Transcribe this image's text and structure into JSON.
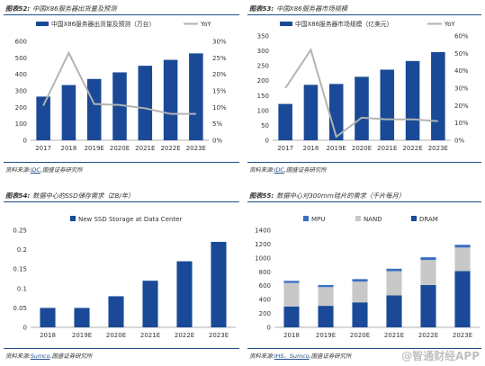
{
  "colors": {
    "bar": "#1a4a97",
    "line": "#b3b3b3",
    "mpu": "#3a6fc4",
    "nand": "#c8c8c8",
    "dram": "#1a4a97",
    "rule": "#1f4e8c"
  },
  "charts": [
    {
      "title_num": "图表52:",
      "title_text": "中国X86服务器出货量及预测",
      "source_prefix": "资料来源:",
      "source_cite": "IDC",
      "source_suffix": ",国盛证券研究所",
      "legend_bar": "中国X86服务器出货量及预测（万台）",
      "legend_line": "YoY"
    },
    {
      "title_num": "图表53:",
      "title_text": "中国X86服务器市场规模",
      "source_prefix": "资料来源:",
      "source_cite": "IDC",
      "source_suffix": ",国盛证券研究所",
      "legend_bar": "中国X86服务器市场规模（亿美元）",
      "legend_line": "YoY"
    },
    {
      "title_num": "图表54:",
      "title_text": "数据中心的SSD储存需求（ZB/年）",
      "source_prefix": "资料来源:",
      "source_cite": "Sumco",
      "source_suffix": ",国盛证券研究所",
      "legend_bar": "New SSD Storage at Data Center"
    },
    {
      "title_num": "图表55:",
      "title_text": "数据中心对300mm硅片的需求（千片每月）",
      "source_prefix": "资料来源:",
      "source_cite": "IHS、Sumco",
      "source_suffix": ",国盛证券研究所",
      "legend_mpu": "MPU",
      "legend_nand": "NAND",
      "legend_dram": "DRAM"
    }
  ],
  "watermark": "@智通财经APP",
  "chart_data": [
    {
      "type": "bar+line",
      "categories": [
        "2017",
        "2018",
        "2019E",
        "2020E",
        "2021E",
        "2022E",
        "2023E"
      ],
      "series": [
        {
          "name": "中国X86服务器出货量及预测（万台）",
          "type": "bar",
          "axis": "left",
          "values": [
            265,
            335,
            372,
            412,
            452,
            488,
            527
          ]
        },
        {
          "name": "YoY",
          "type": "line",
          "axis": "right",
          "values": [
            0.105,
            0.265,
            0.11,
            0.107,
            0.097,
            0.08,
            0.08
          ]
        }
      ],
      "ylim": [
        0,
        600
      ],
      "yticks": [
        0,
        100,
        200,
        300,
        400,
        500,
        600
      ],
      "y2lim": [
        0,
        0.3
      ],
      "y2ticks": [
        "0%",
        "5%",
        "10%",
        "15%",
        "20%",
        "25%",
        "30%"
      ],
      "legend": "top"
    },
    {
      "type": "bar+line",
      "categories": [
        "2017",
        "2018",
        "2019E",
        "2020E",
        "2021E",
        "2022E",
        "2023E"
      ],
      "series": [
        {
          "name": "中国X86服务器市场规模（亿美元）",
          "type": "bar",
          "axis": "left",
          "values": [
            122,
            186,
            189,
            213,
            237,
            266,
            296
          ]
        },
        {
          "name": "YoY",
          "type": "line",
          "axis": "right",
          "values": [
            0.3,
            0.52,
            0.02,
            0.13,
            0.12,
            0.12,
            0.11
          ]
        }
      ],
      "ylim": [
        0,
        350
      ],
      "yticks": [
        0,
        50,
        100,
        150,
        200,
        250,
        300,
        350
      ],
      "y2lim": [
        0,
        0.6
      ],
      "y2ticks": [
        "0%",
        "10%",
        "20%",
        "30%",
        "40%",
        "50%",
        "60%"
      ],
      "legend": "top"
    },
    {
      "type": "bar",
      "categories": [
        "2018",
        "2019E",
        "2020E",
        "2021E",
        "2022E",
        "2023E"
      ],
      "series": [
        {
          "name": "New SSD Storage at Data Center",
          "values": [
            0.05,
            0.05,
            0.08,
            0.12,
            0.17,
            0.22
          ]
        }
      ],
      "ylim": [
        0,
        0.25
      ],
      "yticks": [
        "0",
        "0.05",
        "0.1",
        "0.15",
        "0.2",
        "0.25"
      ],
      "legend": "top"
    },
    {
      "type": "stacked-bar",
      "categories": [
        "2018",
        "2019E",
        "2020E",
        "2021E",
        "2022E",
        "2023E"
      ],
      "series": [
        {
          "name": "DRAM",
          "values": [
            300,
            310,
            360,
            460,
            610,
            810
          ]
        },
        {
          "name": "NAND",
          "values": [
            340,
            270,
            300,
            350,
            360,
            340
          ]
        },
        {
          "name": "MPU",
          "values": [
            30,
            30,
            35,
            35,
            40,
            40
          ]
        }
      ],
      "ylim": [
        0,
        1400
      ],
      "yticks": [
        0,
        200,
        400,
        600,
        800,
        1000,
        1200,
        1400
      ],
      "legend": "top-left"
    }
  ]
}
